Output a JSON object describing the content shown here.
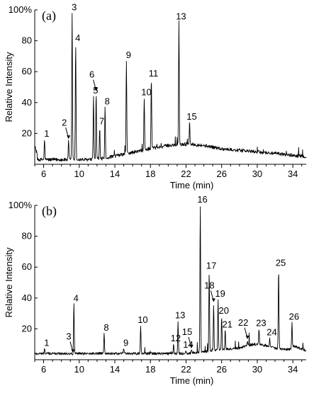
{
  "chart_data": [
    {
      "type": "line",
      "panel_label": "(a)",
      "xlabel": "Time (min)",
      "ylabel": "Relative Intensity",
      "xlim": [
        5,
        35.5
      ],
      "ylim": [
        0,
        100
      ],
      "x_ticks": [
        6,
        10,
        14,
        18,
        22,
        26,
        30,
        34
      ],
      "x_tick_labels": [
        "6",
        "10",
        "14",
        "18",
        "22",
        "26",
        "30",
        "34"
      ],
      "y_ticks": [
        20,
        40,
        60,
        80,
        100
      ],
      "y_tick_labels": [
        "20",
        "40",
        "60",
        "80",
        "100%"
      ],
      "peaks": [
        {
          "label": "1",
          "x": 6.1,
          "y": 16
        },
        {
          "label": "2",
          "x": 8.8,
          "y": 15,
          "arrow": true
        },
        {
          "label": "3",
          "x": 9.2,
          "y": 98
        },
        {
          "label": "4",
          "x": 9.6,
          "y": 78
        },
        {
          "label": "5",
          "x": 11.6,
          "y": 44
        },
        {
          "label": "6",
          "x": 11.9,
          "y": 46,
          "arrow": true
        },
        {
          "label": "7",
          "x": 12.3,
          "y": 24
        },
        {
          "label": "8",
          "x": 12.9,
          "y": 37
        },
        {
          "label": "9",
          "x": 15.3,
          "y": 67
        },
        {
          "label": "10",
          "x": 17.3,
          "y": 43
        },
        {
          "label": "11",
          "x": 18.1,
          "y": 55
        },
        {
          "label": "13",
          "x": 21.2,
          "y": 92
        },
        {
          "label": "15",
          "x": 22.4,
          "y": 27
        }
      ]
    },
    {
      "type": "line",
      "panel_label": "(b)",
      "xlabel": "Time (min)",
      "ylabel": "Relative Intensity",
      "xlim": [
        5,
        35.5
      ],
      "ylim": [
        0,
        100
      ],
      "x_ticks": [
        6,
        10,
        14,
        18,
        22,
        26,
        30,
        34
      ],
      "x_tick_labels": [
        "6",
        "10",
        "14",
        "18",
        "22",
        "26",
        "30",
        "34"
      ],
      "y_ticks": [
        20,
        40,
        60,
        80,
        100
      ],
      "y_tick_labels": [
        "20",
        "40",
        "60",
        "80",
        "100%"
      ],
      "peaks": [
        {
          "label": "1",
          "x": 6.1,
          "y": 7
        },
        {
          "label": "3",
          "x": 9.3,
          "y": 3,
          "arrow": true
        },
        {
          "label": "4",
          "x": 9.4,
          "y": 36
        },
        {
          "label": "8",
          "x": 12.8,
          "y": 17
        },
        {
          "label": "9",
          "x": 15.0,
          "y": 7
        },
        {
          "label": "10",
          "x": 16.9,
          "y": 22
        },
        {
          "label": "12",
          "x": 20.6,
          "y": 10
        },
        {
          "label": "13",
          "x": 21.1,
          "y": 25
        },
        {
          "label": "14",
          "x": 22.0,
          "y": 6
        },
        {
          "label": "15",
          "x": 22.6,
          "y": 6,
          "arrow": true
        },
        {
          "label": "16",
          "x": 23.6,
          "y": 100
        },
        {
          "label": "17",
          "x": 24.6,
          "y": 57
        },
        {
          "label": "18",
          "x": 25.1,
          "y": 36,
          "arrow": true
        },
        {
          "label": "19",
          "x": 25.6,
          "y": 39
        },
        {
          "label": "20",
          "x": 26.0,
          "y": 28
        },
        {
          "label": "21",
          "x": 26.4,
          "y": 19
        },
        {
          "label": "22",
          "x": 28.9,
          "y": 12,
          "arrow": true
        },
        {
          "label": "23",
          "x": 30.2,
          "y": 20
        },
        {
          "label": "24",
          "x": 31.4,
          "y": 14
        },
        {
          "label": "25",
          "x": 32.4,
          "y": 59
        },
        {
          "label": "26",
          "x": 33.9,
          "y": 24
        }
      ]
    }
  ]
}
